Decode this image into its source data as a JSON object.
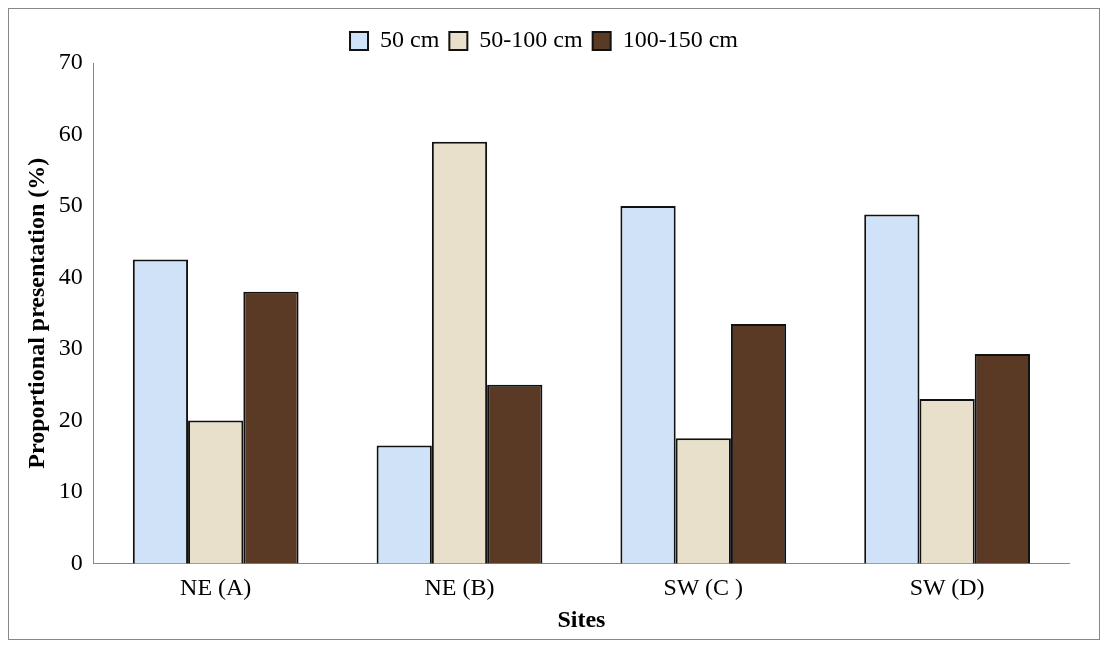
{
  "chart_data": {
    "type": "bar",
    "xlabel": "Sites",
    "ylabel": "Proportional presentation (%)",
    "categories": [
      "NE (A)",
      "NE (B)",
      "SW (C )",
      "SW (D)"
    ],
    "series": [
      {
        "name": "50 cm",
        "color": "#cfe2f8",
        "values": [
          42.5,
          16.5,
          50,
          48.8
        ]
      },
      {
        "name": "50-100 cm",
        "color": "#e9e0cc",
        "values": [
          20,
          59,
          17.5,
          23
        ]
      },
      {
        "name": "100-150 cm",
        "color": "#5a3a25",
        "values": [
          38,
          25,
          33.5,
          29.3
        ]
      }
    ],
    "ylim": [
      0,
      70
    ],
    "yticks": [
      0,
      10,
      20,
      30,
      40,
      50,
      60,
      70
    ],
    "grid": false,
    "legend": "top"
  }
}
